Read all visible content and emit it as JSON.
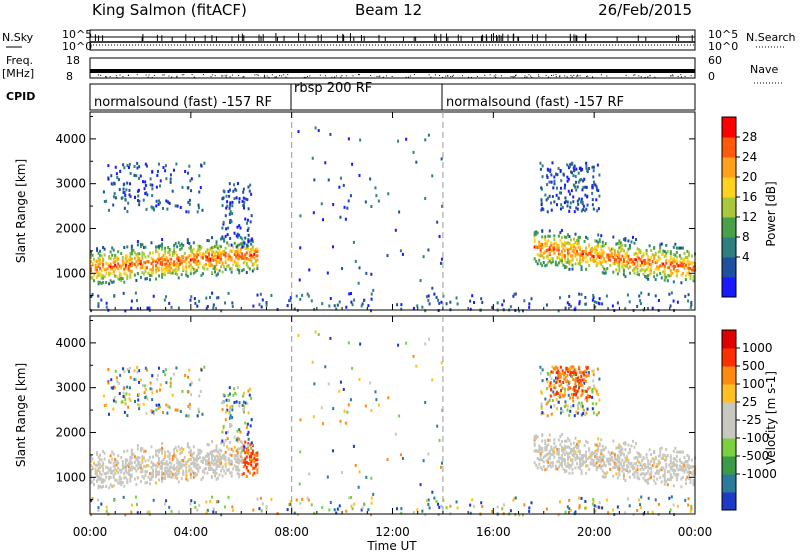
{
  "header": {
    "station": "King Salmon (fitACF)",
    "beam": "Beam 12",
    "date": "26/Feb/2015"
  },
  "side_labels": {
    "nsky": "N.Sky",
    "nsearch": "N.Search",
    "freq": "Freq.",
    "freq_unit": "[MHz]",
    "nave": "Nave",
    "cpid": "CPID"
  },
  "strip_ticks": {
    "noise_left": [
      "10^5",
      "10^0"
    ],
    "noise_right": [
      "10^5",
      "10^0"
    ],
    "freq_left": [
      "18",
      "8"
    ],
    "nave_right": [
      "60",
      "0"
    ]
  },
  "modes": [
    {
      "label": "normalsound (fast) -157 RF",
      "start_hour": 0
    },
    {
      "label": "rbsp 200 RF",
      "start_hour": 8
    },
    {
      "label": "normalsound (fast) -157 RF",
      "start_hour": 14
    }
  ],
  "chart_data": {
    "type": "heatmap",
    "title": "King Salmon (fitACF)  Beam 12  26/Feb/2015",
    "xlabel": "Time UT",
    "x_ticks": [
      "00:00",
      "04:00",
      "08:00",
      "12:00",
      "16:00",
      "20:00",
      "00:00"
    ],
    "xlim_hours": [
      0,
      24
    ],
    "panels": [
      {
        "name": "power",
        "ylabel": "Slant Range [km]",
        "ylim": [
          180,
          4600
        ],
        "y_ticks": [
          1000,
          2000,
          3000,
          4000
        ],
        "colorbar_label": "Power [dB]",
        "colorbar_ticks": [
          "28",
          "24",
          "20",
          "16",
          "12",
          "8",
          "4"
        ],
        "colorbar_colors": [
          "#1a1aff",
          "#1f4f9f",
          "#2f7f7f",
          "#4aa04a",
          "#a8c83a",
          "#ffd21e",
          "#ffa019",
          "#ff5a0a",
          "#ff0000"
        ]
      },
      {
        "name": "velocity",
        "ylabel": "Slant Range [km]",
        "ylim": [
          180,
          4600
        ],
        "y_ticks": [
          1000,
          2000,
          3000,
          4000
        ],
        "colorbar_label": "Velocity [m s-1]",
        "colorbar_ticks": [
          "1000",
          "500",
          "100",
          "25",
          "-25",
          "-100",
          "-500",
          "-1000"
        ],
        "colorbar_colors": [
          "#1c3cc8",
          "#2a7a9a",
          "#3a9a4a",
          "#7ad040",
          "#c8c8c0",
          "#c8c8c0",
          "#ffc020",
          "#ff8a10",
          "#ff3000",
          "#e00000"
        ]
      }
    ]
  }
}
